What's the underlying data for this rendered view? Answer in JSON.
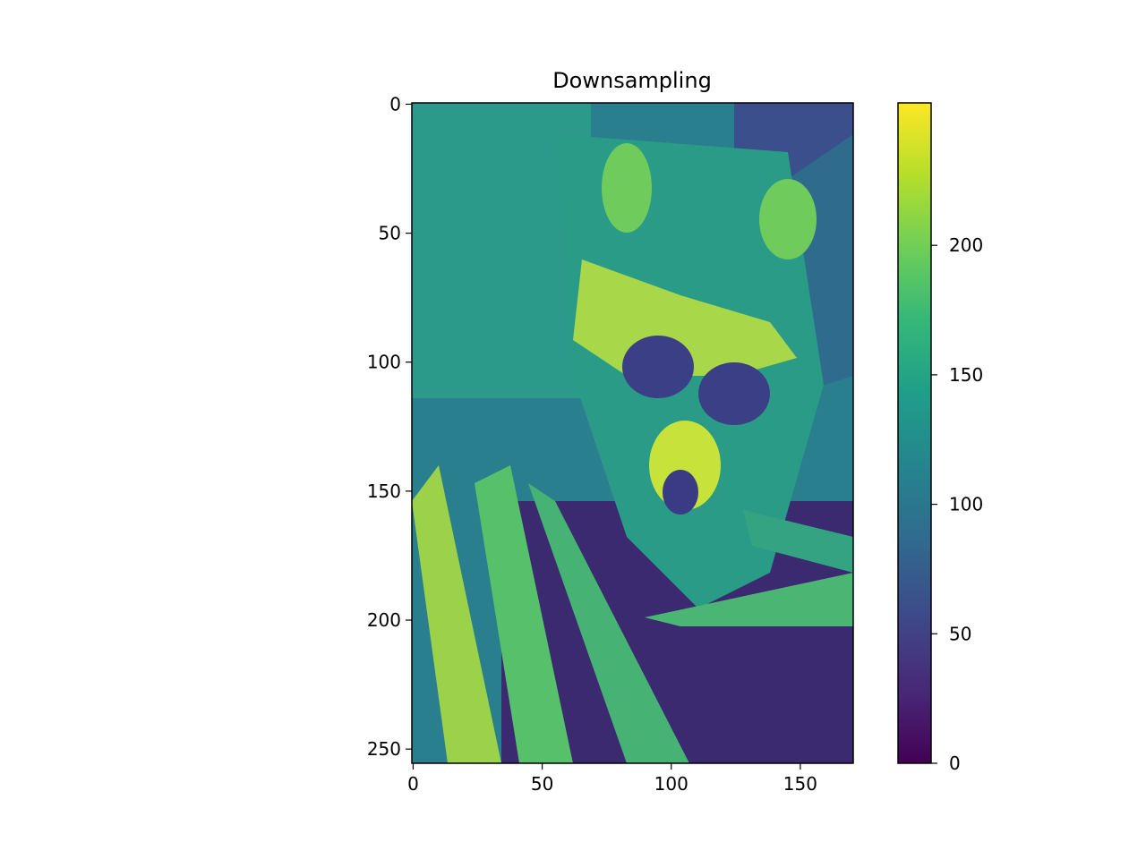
{
  "chart_data": {
    "type": "heatmap",
    "title": "Downsampling",
    "xlabel": "",
    "ylabel": "",
    "image_shape": [
      256,
      171
    ],
    "xlim": [
      -0.5,
      170.5
    ],
    "ylim": [
      255.5,
      -0.5
    ],
    "x_ticks": [
      0,
      50,
      100,
      150
    ],
    "y_ticks": [
      0,
      50,
      100,
      150,
      200,
      250
    ],
    "colormap": "viridis",
    "colorbar": {
      "min": 0,
      "max": 255,
      "ticks": [
        0,
        50,
        100,
        150,
        200
      ]
    },
    "content": "raccoon face image among palm leaves"
  },
  "colors": {
    "viridis": [
      "#440154",
      "#482878",
      "#3e4989",
      "#31688e",
      "#26828e",
      "#1f9e89",
      "#35b779",
      "#6ece58",
      "#b5de2b",
      "#fde725"
    ]
  }
}
